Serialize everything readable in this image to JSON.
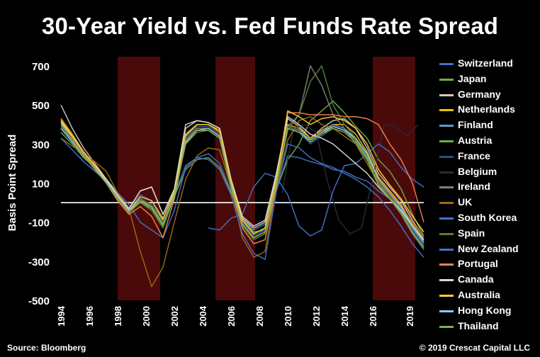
{
  "title": "30-Year Yield vs. Fed Funds Rate Spread",
  "source": "Source: Bloomberg",
  "credit": "© 2019 Crescat Capital LLC",
  "colors": {
    "background": "#000000",
    "recession_band": "#4a0a0a",
    "zero_line": "#ffffff"
  },
  "chart_data": {
    "type": "line",
    "title": "30-Year Yield vs. Fed Funds Rate Spread",
    "xlabel": "",
    "ylabel": "Basis Point Spread",
    "xlim": [
      1994,
      2019.6
    ],
    "ylim": [
      -500,
      720
    ],
    "y_ticks": [
      700,
      500,
      300,
      100,
      -100,
      -300,
      -500
    ],
    "x_ticks": [
      "1994",
      "1996",
      "1998",
      "2000",
      "2002",
      "2004",
      "2006",
      "2008",
      "2010",
      "2012",
      "2014",
      "2016",
      "2019"
    ],
    "x_tick_values": [
      1994,
      1996,
      1998,
      2000,
      2002,
      2004,
      2006,
      2008,
      2010,
      2012,
      2014,
      2016,
      2018.6
    ],
    "zero_line": 0,
    "shaded_periods": [
      [
        1998.0,
        2001.0
      ],
      [
        2004.9,
        2007.7
      ],
      [
        2016.0,
        2019.0
      ]
    ],
    "legend_position": "right",
    "grid": false,
    "series": [
      {
        "name": "Switzerland",
        "color": "#4472c4",
        "start": 1994,
        "values": [
          380,
          320,
          230,
          180,
          120,
          40,
          -30,
          40,
          10,
          -90,
          40,
          190,
          230,
          250,
          200,
          60,
          -80,
          -140,
          -110,
          60,
          240,
          230,
          210,
          195,
          170,
          160,
          130,
          110,
          60,
          20,
          -20,
          -130,
          -190
        ]
      },
      {
        "name": "Japan",
        "color": "#70ad47",
        "start": 1994,
        "values": [
          360,
          300,
          230,
          180,
          110,
          30,
          -50,
          0,
          -30,
          -110,
          30,
          170,
          220,
          230,
          180,
          50,
          -80,
          -150,
          -140,
          70,
          220,
          300,
          420,
          470,
          520,
          460,
          390,
          330,
          220,
          160,
          70,
          -60,
          -170
        ]
      },
      {
        "name": "Germany",
        "color": "#c9c9c9",
        "start": 1994,
        "values": [
          500,
          380,
          280,
          200,
          120,
          50,
          -30,
          60,
          80,
          -60,
          60,
          380,
          420,
          410,
          380,
          120,
          -80,
          -130,
          -100,
          140,
          430,
          390,
          330,
          380,
          420,
          430,
          380,
          280,
          150,
          80,
          10,
          -90,
          -180
        ]
      },
      {
        "name": "Netherlands",
        "color": "#ffc000",
        "start": 1994,
        "values": [
          430,
          350,
          260,
          190,
          110,
          30,
          -40,
          20,
          -10,
          -90,
          60,
          340,
          400,
          400,
          360,
          110,
          -90,
          -160,
          -130,
          120,
          400,
          380,
          330,
          370,
          400,
          400,
          350,
          260,
          130,
          60,
          -10,
          -110,
          -190
        ]
      },
      {
        "name": "Finland",
        "color": "#5b9bd5",
        "start": 1994,
        "values": [
          420,
          340,
          250,
          180,
          110,
          20,
          -50,
          10,
          -20,
          -110,
          50,
          330,
          390,
          390,
          350,
          100,
          -100,
          -170,
          -140,
          110,
          390,
          370,
          320,
          360,
          400,
          380,
          330,
          240,
          110,
          40,
          -30,
          -130,
          -210
        ]
      },
      {
        "name": "Austria",
        "color": "#70ad47",
        "start": 1994,
        "values": [
          410,
          330,
          240,
          170,
          100,
          20,
          -50,
          10,
          -30,
          -120,
          40,
          320,
          380,
          380,
          340,
          90,
          -110,
          -180,
          -150,
          100,
          380,
          360,
          310,
          350,
          390,
          370,
          320,
          230,
          100,
          30,
          -40,
          -140,
          -220
        ]
      },
      {
        "name": "France",
        "color": "#2e4a8c",
        "start": 1994,
        "values": [
          400,
          330,
          240,
          180,
          110,
          30,
          -40,
          20,
          -10,
          -100,
          50,
          330,
          390,
          390,
          350,
          100,
          -100,
          -170,
          -140,
          110,
          390,
          360,
          300,
          340,
          380,
          360,
          310,
          220,
          90,
          20,
          -50,
          -140,
          -220
        ]
      },
      {
        "name": "Belgium",
        "color": "#2b2b3a",
        "start": 2000,
        "values": [
          null,
          null,
          null,
          null,
          null,
          null,
          null,
          null,
          null,
          null,
          null,
          null,
          50,
          380,
          400,
          360,
          110,
          -90,
          -160,
          -130,
          120,
          400,
          390,
          340,
          400,
          420,
          380,
          300,
          150,
          60,
          -20,
          -120,
          -200
        ]
      },
      {
        "name": "Ireland",
        "color": "#7f7f7f",
        "start": 1994,
        "values": [
          410,
          330,
          250,
          180,
          110,
          30,
          -40,
          20,
          -20,
          -110,
          40,
          320,
          380,
          380,
          340,
          90,
          -110,
          -180,
          -150,
          100,
          390,
          450,
          700,
          600,
          450,
          380,
          300,
          220,
          90,
          20,
          -60,
          -160,
          -240
        ]
      },
      {
        "name": "UK",
        "color": "#9e6a10",
        "start": 1994,
        "values": [
          330,
          290,
          250,
          210,
          160,
          50,
          -30,
          -250,
          -430,
          -330,
          -100,
          120,
          240,
          280,
          270,
          80,
          -180,
          -280,
          -250,
          80,
          320,
          420,
          440,
          400,
          380,
          340,
          300,
          200,
          100,
          40,
          -20,
          -100,
          -180
        ]
      },
      {
        "name": "South Korea",
        "color": "#4472c4",
        "start": 1998.0,
        "values": [
          null,
          null,
          null,
          null,
          null,
          null,
          null,
          null,
          -130,
          -140,
          -80,
          -60,
          80,
          150,
          130,
          40,
          -120,
          -170,
          -140,
          60,
          190,
          200,
          250,
          300,
          260,
          180,
          120,
          80,
          20,
          -20,
          -70,
          -150,
          -230
        ]
      },
      {
        "name": "Spain",
        "color": "#548235",
        "start": 1994,
        "values": [
          390,
          320,
          240,
          170,
          100,
          20,
          -50,
          0,
          -40,
          -130,
          30,
          300,
          360,
          370,
          330,
          80,
          -120,
          -190,
          -160,
          90,
          370,
          450,
          620,
          700,
          500,
          400,
          330,
          250,
          110,
          30,
          -50,
          -150,
          -230
        ]
      },
      {
        "name": "New Zealand",
        "color": "#4472c4",
        "start": 1994,
        "values": [
          330,
          270,
          210,
          160,
          110,
          50,
          -10,
          -100,
          -140,
          -180,
          -40,
          180,
          230,
          220,
          170,
          40,
          -160,
          -260,
          -290,
          60,
          300,
          280,
          230,
          200,
          180,
          150,
          120,
          80,
          30,
          -40,
          -120,
          -210,
          -280
        ]
      },
      {
        "name": "Portugal",
        "color": "#f4844c",
        "start": 1994,
        "values": [
          420,
          340,
          250,
          180,
          100,
          10,
          -60,
          -20,
          -70,
          -180,
          20,
          310,
          370,
          370,
          330,
          80,
          -130,
          -210,
          -190,
          80,
          460,
          460,
          450,
          450,
          450,
          440,
          440,
          430,
          400,
          300,
          220,
          100,
          -100
        ]
      },
      {
        "name": "Canada",
        "color": "#d9d9d9",
        "start": 1994,
        "values": [
          410,
          340,
          260,
          190,
          120,
          40,
          -30,
          60,
          80,
          -60,
          70,
          400,
          420,
          410,
          380,
          120,
          -70,
          -120,
          -90,
          150,
          440,
          400,
          350,
          330,
          300,
          250,
          200,
          150,
          80,
          20,
          -40,
          -120,
          -190
        ]
      },
      {
        "name": "Australia",
        "color": "#ffcc33",
        "start": 1994,
        "values": [
          420,
          340,
          260,
          190,
          110,
          40,
          -40,
          30,
          10,
          -80,
          50,
          350,
          400,
          400,
          370,
          110,
          -90,
          -160,
          -130,
          120,
          470,
          440,
          400,
          430,
          440,
          420,
          380,
          300,
          170,
          90,
          20,
          -70,
          -150
        ]
      },
      {
        "name": "Hong Kong",
        "color": "#9dc3e6",
        "start": 1994,
        "values": [
          380,
          310,
          240,
          170,
          110,
          30,
          -40,
          10,
          -20,
          -110,
          30,
          310,
          370,
          380,
          340,
          90,
          -110,
          -180,
          -150,
          100,
          380,
          360,
          320,
          360,
          390,
          370,
          330,
          250,
          120,
          50,
          -20,
          -120,
          -200
        ]
      },
      {
        "name": "Thailand",
        "color": "#7cb342",
        "start": 1994,
        "values": [
          400,
          320,
          240,
          170,
          100,
          20,
          -50,
          10,
          -20,
          -110,
          40,
          300,
          370,
          370,
          330,
          80,
          -110,
          -180,
          -150,
          100,
          380,
          360,
          310,
          350,
          380,
          360,
          310,
          220,
          90,
          20,
          -50,
          -150,
          -230
        ]
      }
    ]
  }
}
